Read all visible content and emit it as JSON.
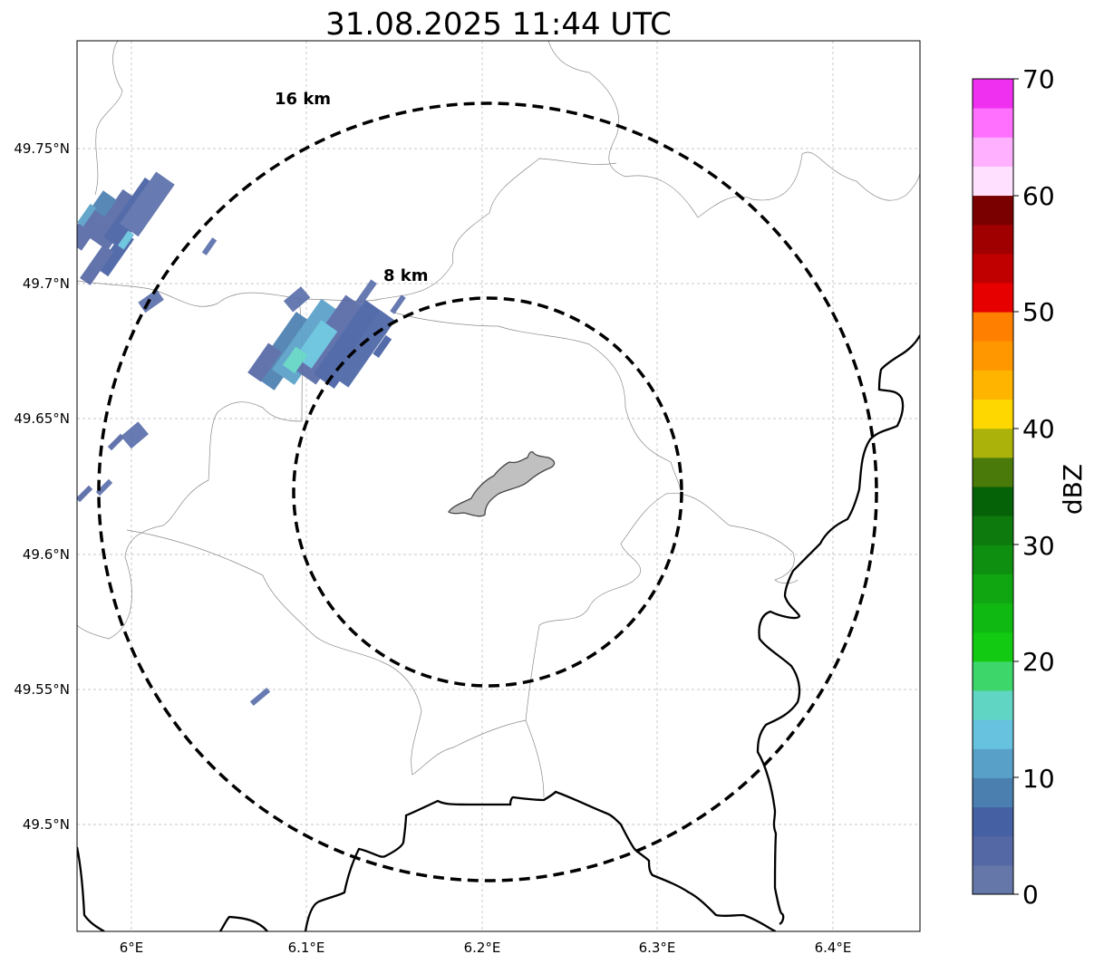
{
  "title": "31.08.2025 11:44 UTC",
  "map": {
    "lon_ticks": [
      "6°E",
      "6.1°E",
      "6.2°E",
      "6.3°E",
      "6.4°E"
    ],
    "lat_ticks": [
      "49.75°N",
      "49.7°N",
      "49.65°N",
      "49.6°N",
      "49.55°N",
      "49.5°N"
    ],
    "rings": [
      {
        "label": "16 km",
        "radius_km": 16
      },
      {
        "label": "8 km",
        "radius_km": 8
      }
    ],
    "gridlines": true
  },
  "colorbar": {
    "label": "dBZ",
    "ticks": [
      "0",
      "10",
      "20",
      "30",
      "40",
      "50",
      "60",
      "70"
    ],
    "colors": [
      "#6577a8",
      "#5568a6",
      "#4560a3",
      "#4a7fb0",
      "#58a0c8",
      "#66c2de",
      "#61d5c4",
      "#3dd66a",
      "#12ca12",
      "#10b812",
      "#10a612",
      "#0e8f10",
      "#0c7a0c",
      "#066206",
      "#4a7a0a",
      "#abb20a",
      "#ffd700",
      "#ffb400",
      "#ff9800",
      "#ff7f00",
      "#e60000",
      "#c00000",
      "#a00000",
      "#7a0000",
      "#ffe0ff",
      "#ffb0ff",
      "#ff70ff",
      "#f030f0"
    ]
  }
}
